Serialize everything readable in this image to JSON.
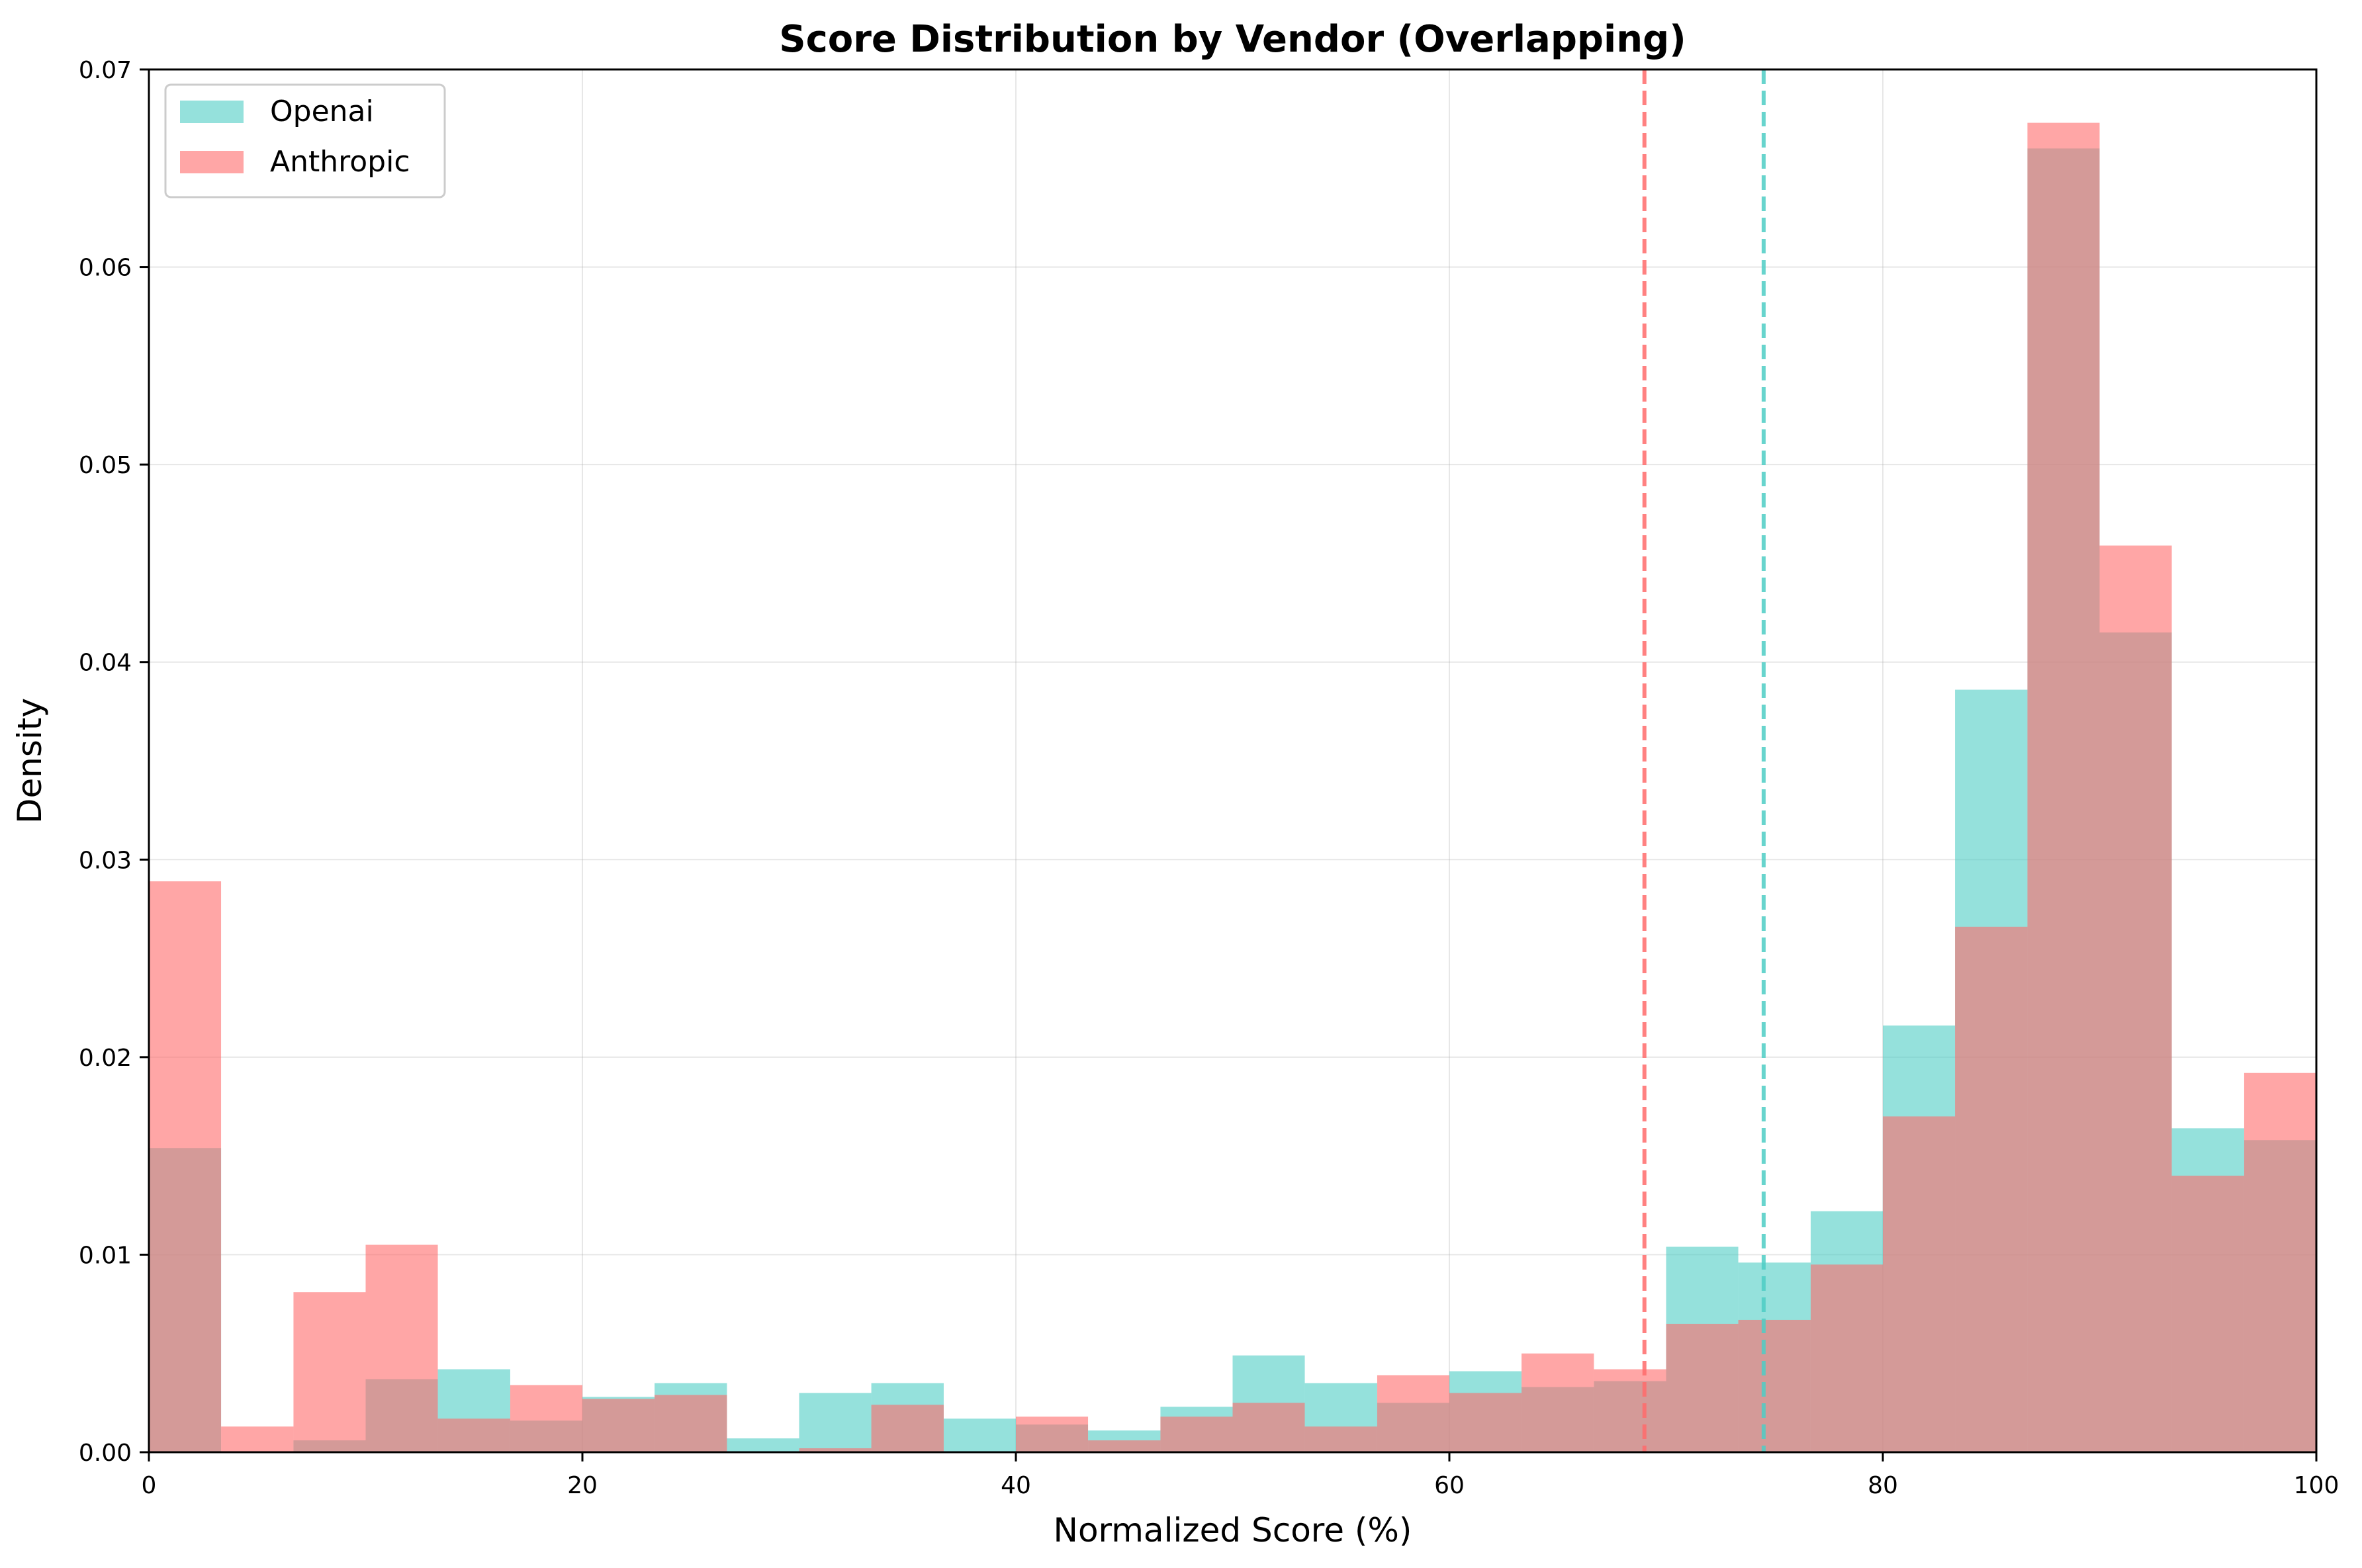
{
  "chart_data": {
    "type": "histogram",
    "title": "Score Distribution by Vendor (Overlapping)",
    "xlabel": "Normalized Score (%)",
    "ylabel": "Density",
    "xlim": [
      0,
      100
    ],
    "ylim": [
      0,
      0.07
    ],
    "x_ticks": [
      "0",
      "20",
      "40",
      "60",
      "80",
      "100"
    ],
    "y_ticks": [
      "0.00",
      "0.01",
      "0.02",
      "0.03",
      "0.04",
      "0.05",
      "0.06",
      "0.07"
    ],
    "grid": true,
    "legend_position": "upper-left",
    "bin_edges": [
      0,
      3.33,
      6.67,
      10,
      13.33,
      16.67,
      20,
      23.33,
      26.67,
      30,
      33.33,
      36.67,
      40,
      43.33,
      46.67,
      50,
      53.33,
      56.67,
      60,
      63.33,
      66.67,
      70,
      73.33,
      76.67,
      80,
      83.33,
      86.67,
      90,
      93.33,
      96.67,
      100
    ],
    "series": [
      {
        "name": "Openai",
        "color": "#4ecdc4",
        "values": [
          0.0154,
          0,
          0.0006,
          0.0037,
          0.0042,
          0.0016,
          0.0028,
          0.0035,
          0.0007,
          0.003,
          0.0035,
          0.0017,
          0.0014,
          0.0011,
          0.0023,
          0.0049,
          0.0035,
          0.0025,
          0.0041,
          0.0033,
          0.0036,
          0.0104,
          0.0096,
          0.0122,
          0.0216,
          0.0386,
          0.066,
          0.0415,
          0.0164,
          0.0158
        ],
        "mean": 74.5
      },
      {
        "name": "Anthropic",
        "color": "#ff6b6b",
        "values": [
          0.0289,
          0.0013,
          0.0081,
          0.0105,
          0.0017,
          0.0034,
          0.0027,
          0.0029,
          0,
          0.0002,
          0.0024,
          0,
          0.0018,
          0.0006,
          0.0018,
          0.0025,
          0.0013,
          0.0039,
          0.003,
          0.005,
          0.0042,
          0.0065,
          0.0067,
          0.0095,
          0.017,
          0.0266,
          0.0673,
          0.0459,
          0.014,
          0.0192
        ],
        "mean": 69.0
      }
    ]
  }
}
